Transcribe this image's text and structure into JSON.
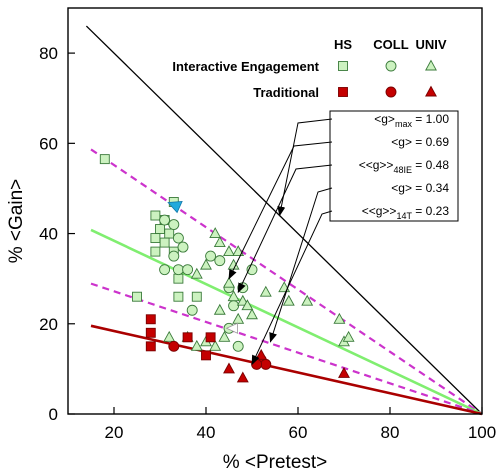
{
  "chart_data": {
    "type": "scatter",
    "xlabel": "% <Pretest>",
    "ylabel": "% <Gain>",
    "xlim": [
      10,
      100
    ],
    "ylim": [
      0,
      90
    ],
    "xticks": [
      20,
      40,
      60,
      80,
      100
    ],
    "yticks": [
      0,
      20,
      40,
      60,
      80
    ],
    "grid": false,
    "legend": {
      "placement": "top-right",
      "columns": [
        "HS",
        "COLL",
        "UNIV"
      ],
      "rows": [
        {
          "label": "Interactive Engagement",
          "color": "#ccf2c0",
          "stroke": "#3a7a3a"
        },
        {
          "label": "Traditional",
          "color": "#c40000",
          "stroke": "#7a0000"
        }
      ]
    },
    "lines": [
      {
        "name": "<g>max = 1.00",
        "label_parts": [
          "<g>",
          "max",
          " = 1.00"
        ],
        "g": 1.0,
        "color": "#000000",
        "style": "solid",
        "x_start": 14
      },
      {
        "name": "<g> = 0.69",
        "label_parts": [
          "<g> = 0.69",
          "",
          ""
        ],
        "g": 0.69,
        "color": "#cc33cc",
        "style": "dashed",
        "x_start": 15
      },
      {
        "name": "<<g>>48IE = 0.48",
        "label_parts": [
          "<<g>>",
          "48IE",
          " = 0.48"
        ],
        "g": 0.48,
        "color": "#80ee70",
        "style": "solid",
        "x_start": 15
      },
      {
        "name": "<g> = 0.34",
        "label_parts": [
          "<g> = 0.34",
          "",
          ""
        ],
        "g": 0.34,
        "color": "#cc33cc",
        "style": "dashed",
        "x_start": 15
      },
      {
        "name": "<<g>>14T = 0.23",
        "label_parts": [
          "<<g>>",
          "14T",
          " = 0.23"
        ],
        "g": 0.23,
        "color": "#aa0000",
        "style": "solid",
        "x_start": 15
      }
    ],
    "series": [
      {
        "name": "Interactive Engagement",
        "level": "HS",
        "marker": "square",
        "points": [
          [
            18,
            56.5
          ],
          [
            33,
            47
          ],
          [
            29,
            44
          ],
          [
            31,
            43
          ],
          [
            30,
            41
          ],
          [
            32,
            40
          ],
          [
            29,
            39
          ],
          [
            31,
            38
          ],
          [
            29,
            36
          ],
          [
            33,
            36
          ],
          [
            34,
            30
          ],
          [
            34,
            26
          ],
          [
            38,
            26
          ],
          [
            25,
            26
          ]
        ]
      },
      {
        "name": "Interactive Engagement",
        "level": "COLL",
        "marker": "circle",
        "points": [
          [
            31,
            43
          ],
          [
            33,
            42
          ],
          [
            34,
            39
          ],
          [
            35,
            37
          ],
          [
            33,
            35
          ],
          [
            31,
            32
          ],
          [
            34,
            32
          ],
          [
            36,
            32
          ],
          [
            41,
            35
          ],
          [
            43,
            34
          ],
          [
            45,
            28
          ],
          [
            46,
            24
          ],
          [
            48,
            28
          ],
          [
            50,
            32
          ],
          [
            37,
            23
          ],
          [
            45,
            19
          ],
          [
            47,
            15
          ]
        ]
      },
      {
        "name": "Interactive Engagement",
        "level": "UNIV",
        "marker": "triangle",
        "points": [
          [
            38,
            31
          ],
          [
            40,
            33
          ],
          [
            42,
            40
          ],
          [
            43,
            38
          ],
          [
            45,
            36
          ],
          [
            46,
            33
          ],
          [
            47,
            36
          ],
          [
            45,
            29
          ],
          [
            46,
            26
          ],
          [
            48,
            25
          ],
          [
            49,
            24
          ],
          [
            50,
            22
          ],
          [
            47,
            21
          ],
          [
            53,
            27
          ],
          [
            58,
            25
          ],
          [
            57,
            28
          ],
          [
            62,
            25
          ],
          [
            69,
            21
          ],
          [
            70,
            16
          ],
          [
            71,
            17
          ],
          [
            43,
            23
          ],
          [
            44,
            17
          ],
          [
            38,
            15
          ],
          [
            40,
            16
          ],
          [
            42,
            15
          ],
          [
            36,
            17
          ],
          [
            32,
            17
          ]
        ]
      },
      {
        "name": "Traditional",
        "level": "HS",
        "marker": "square",
        "points": [
          [
            28,
            21
          ],
          [
            28,
            18
          ],
          [
            28,
            15
          ],
          [
            36,
            17
          ],
          [
            41,
            17
          ],
          [
            40,
            13
          ]
        ]
      },
      {
        "name": "Traditional",
        "level": "COLL",
        "marker": "circle",
        "points": [
          [
            33,
            15
          ],
          [
            52,
            12
          ],
          [
            53,
            11
          ],
          [
            51,
            11
          ]
        ]
      },
      {
        "name": "Traditional",
        "level": "UNIV",
        "marker": "triangle",
        "points": [
          [
            45,
            10
          ],
          [
            48,
            8
          ],
          [
            52,
            13
          ],
          [
            70,
            9
          ]
        ]
      }
    ],
    "arrows": [
      {
        "name": "blue",
        "color": "#22aadd",
        "at": [
          33.5,
          46
        ]
      },
      {
        "name": "white",
        "color": "#ffffff",
        "at": [
          46,
          19
        ]
      }
    ]
  }
}
